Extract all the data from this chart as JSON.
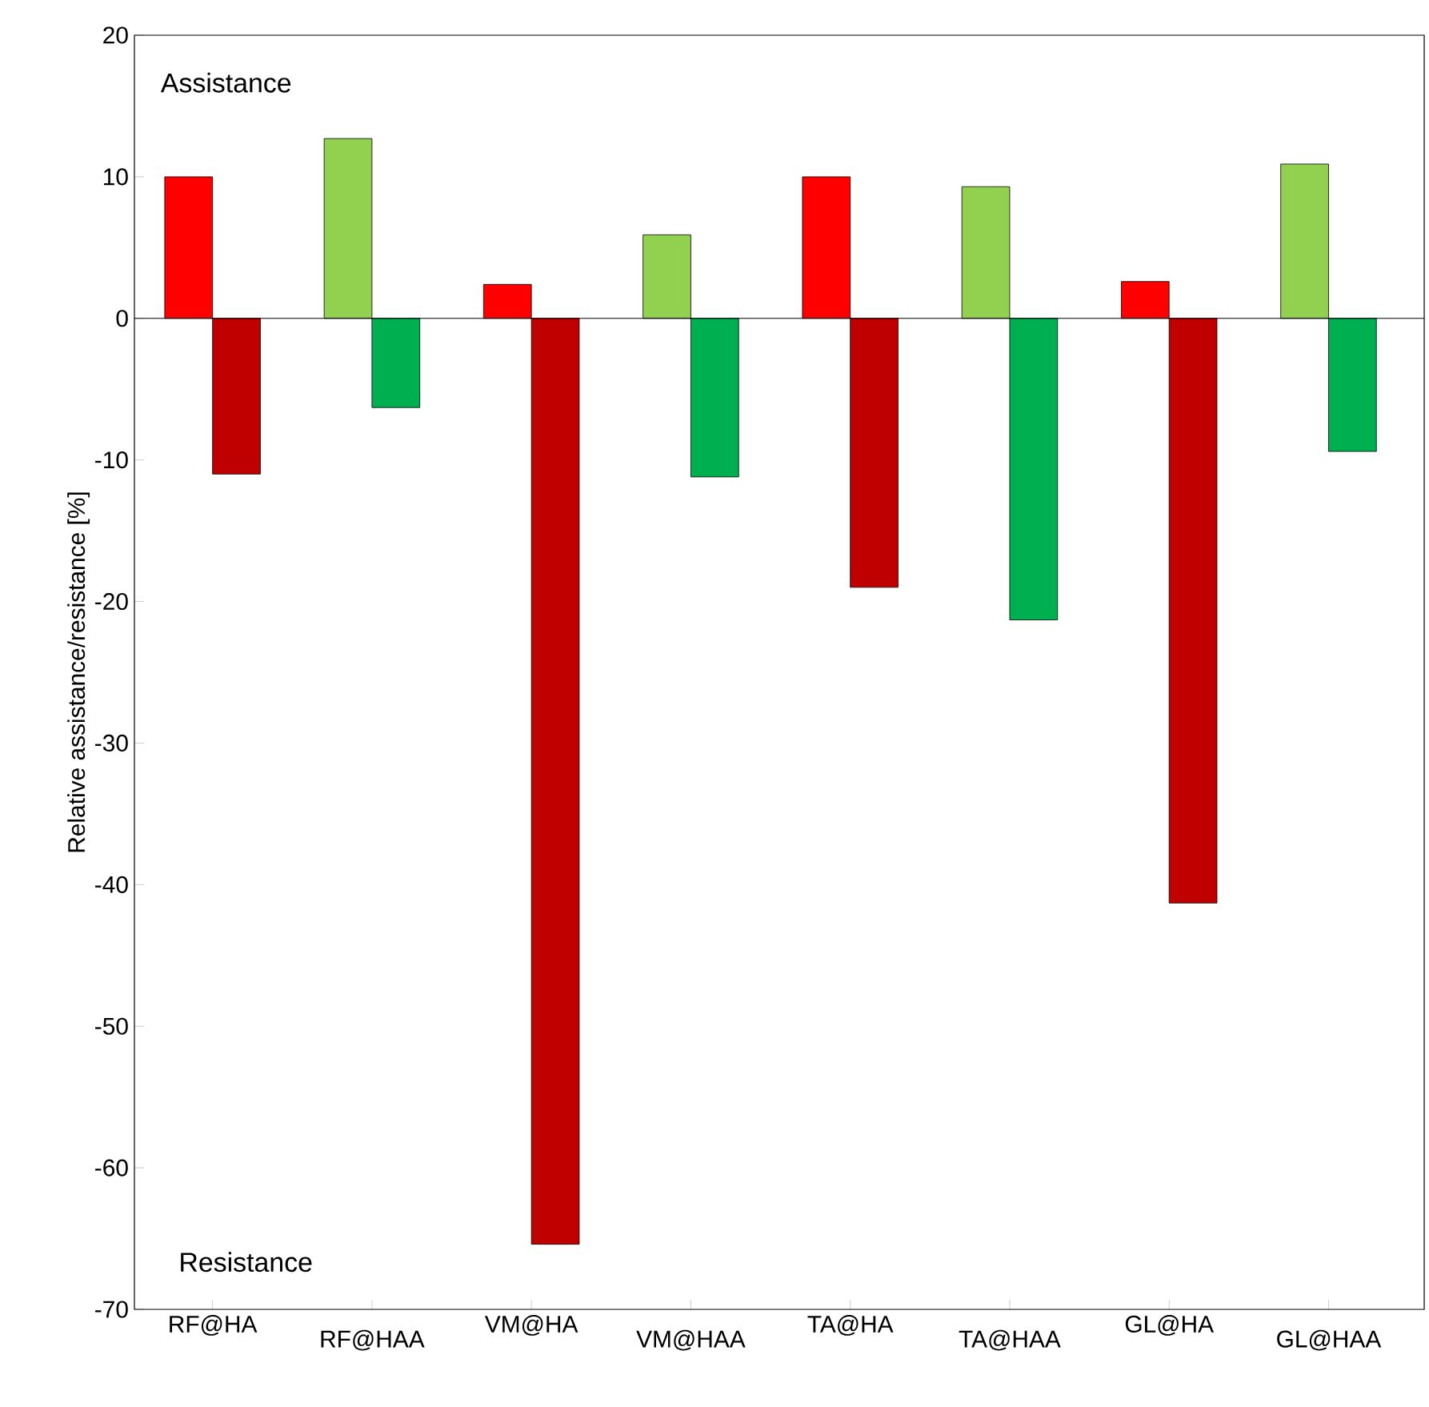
{
  "chart_data": {
    "type": "bar",
    "ylabel": "Relative assistance/resistance [%]",
    "categories": [
      "RF@HA",
      "RF@HAA",
      "VM@HA",
      "VM@HAA",
      "TA@HA",
      "TA@HAA",
      "GL@HA",
      "GL@HAA"
    ],
    "series": [
      {
        "colors": [
          "#ff0000",
          "#92d050",
          "#ff0000",
          "#92d050",
          "#ff0000",
          "#92d050",
          "#ff0000",
          "#92d050"
        ],
        "values": [
          10,
          12.7,
          2.4,
          5.9,
          10,
          9.3,
          2.6,
          10.9
        ]
      },
      {
        "colors": [
          "#c00000",
          "#00b050",
          "#c00000",
          "#00b050",
          "#c00000",
          "#00b050",
          "#c00000",
          "#00b050"
        ],
        "values": [
          -11,
          -6.3,
          -65.4,
          -11.2,
          -19,
          -21.3,
          -41.3,
          -9.4
        ]
      }
    ],
    "ylim": [
      -70,
      20
    ],
    "yticks": [
      -70,
      -60,
      -50,
      -40,
      -30,
      -20,
      -10,
      0,
      10,
      20
    ],
    "ref_lines": [
      {
        "axis": "y",
        "value": 0,
        "color": "#000000"
      }
    ],
    "annotations": [
      "Assistance",
      "Resistance"
    ]
  }
}
